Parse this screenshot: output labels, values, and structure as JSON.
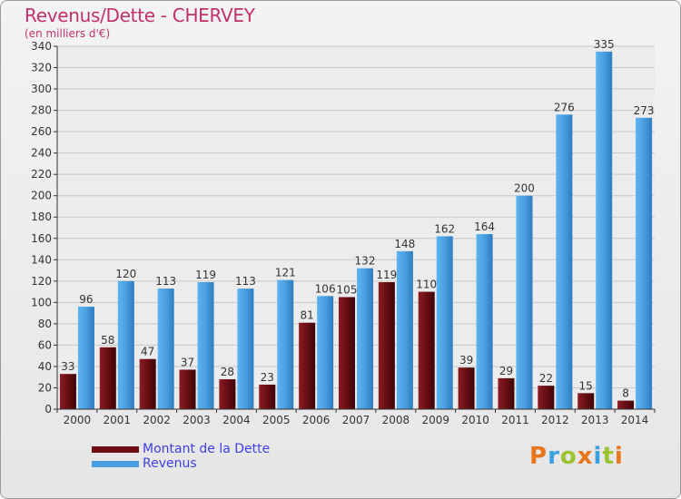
{
  "header": {
    "title": "Revenus/Dette - CHERVEY",
    "unit": "(en milliers d'€)"
  },
  "legend": {
    "items": [
      {
        "label": "Montant de la Dette",
        "color": "#6b0f14"
      },
      {
        "label": "Revenus",
        "color": "#4a9fe0"
      }
    ]
  },
  "logo": {
    "letters": [
      "P",
      "r",
      "o",
      "x",
      "i",
      "t",
      "i"
    ],
    "colors": [
      "#e8751a",
      "#3aa0e0",
      "#9ac32d",
      "#e8751a",
      "#3aa0e0",
      "#9ac32d",
      "#e8751a"
    ]
  },
  "chart_data": {
    "type": "bar",
    "categories": [
      "2000",
      "2001",
      "2002",
      "2003",
      "2004",
      "2005",
      "2006",
      "2007",
      "2008",
      "2009",
      "2010",
      "2011",
      "2012",
      "2013",
      "2014"
    ],
    "series": [
      {
        "name": "Montant de la Dette",
        "color": "#6b0f14",
        "values": [
          33,
          58,
          47,
          37,
          28,
          23,
          81,
          105,
          119,
          110,
          39,
          29,
          22,
          15,
          8
        ]
      },
      {
        "name": "Revenus",
        "color": "#4a9fe0",
        "values": [
          96,
          120,
          113,
          119,
          113,
          121,
          106,
          132,
          148,
          162,
          164,
          200,
          276,
          335,
          273
        ]
      }
    ],
    "ylim": [
      0,
      340
    ],
    "yticks": [
      0,
      20,
      40,
      60,
      80,
      100,
      120,
      140,
      160,
      180,
      200,
      220,
      240,
      260,
      280,
      300,
      320,
      340
    ],
    "grid": true
  }
}
